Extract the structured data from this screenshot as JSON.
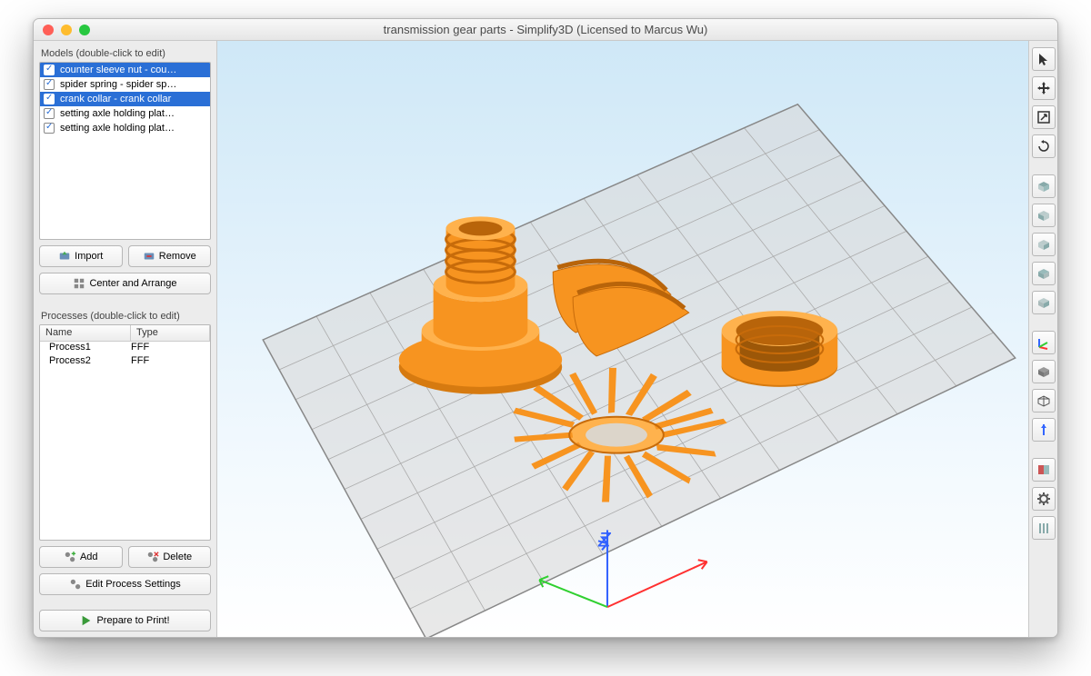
{
  "window": {
    "title": "transmission gear parts - Simplify3D (Licensed to Marcus Wu)",
    "traffic_colors": [
      "#ff5f57",
      "#febc2e",
      "#28c840"
    ]
  },
  "models_panel": {
    "label": "Models (double-click to edit)",
    "items": [
      {
        "label": "counter sleeve nut - cou…",
        "checked": true,
        "selected": true
      },
      {
        "label": "spider spring - spider sp…",
        "checked": true,
        "selected": false
      },
      {
        "label": "crank collar - crank collar",
        "checked": true,
        "selected": true
      },
      {
        "label": "setting axle holding plat…",
        "checked": true,
        "selected": false
      },
      {
        "label": "setting axle holding plat…",
        "checked": true,
        "selected": false
      }
    ],
    "buttons": {
      "import": "Import",
      "remove": "Remove",
      "center": "Center and Arrange"
    }
  },
  "processes_panel": {
    "label": "Processes (double-click to edit)",
    "columns": [
      "Name",
      "Type"
    ],
    "rows": [
      [
        "Process1",
        "FFF"
      ],
      [
        "Process2",
        "FFF"
      ]
    ],
    "buttons": {
      "add": "Add",
      "delete": "Delete",
      "edit": "Edit Process Settings",
      "prepare": "Prepare to Print!"
    }
  },
  "viewport": {
    "bg_top": "#cfe8f7",
    "bg_bottom": "#ffffff",
    "grid_color": "#aaaaaa",
    "grid_border": "#888888",
    "part_color": "#f79420",
    "part_shadow": "#d67a10",
    "part_highlight": "#ffb24d",
    "axes": {
      "x": "#ff3030",
      "y": "#30d030",
      "z": "#3060ff"
    }
  },
  "right_toolbar": {
    "tools": [
      "cursor",
      "move",
      "scale",
      "rotate",
      "",
      "view-top",
      "view-front",
      "view-side",
      "view-iso",
      "view-right",
      "",
      "coord-axes",
      "solid-cube",
      "wireframe",
      "normals",
      "",
      "section",
      "settings",
      "supports"
    ]
  }
}
